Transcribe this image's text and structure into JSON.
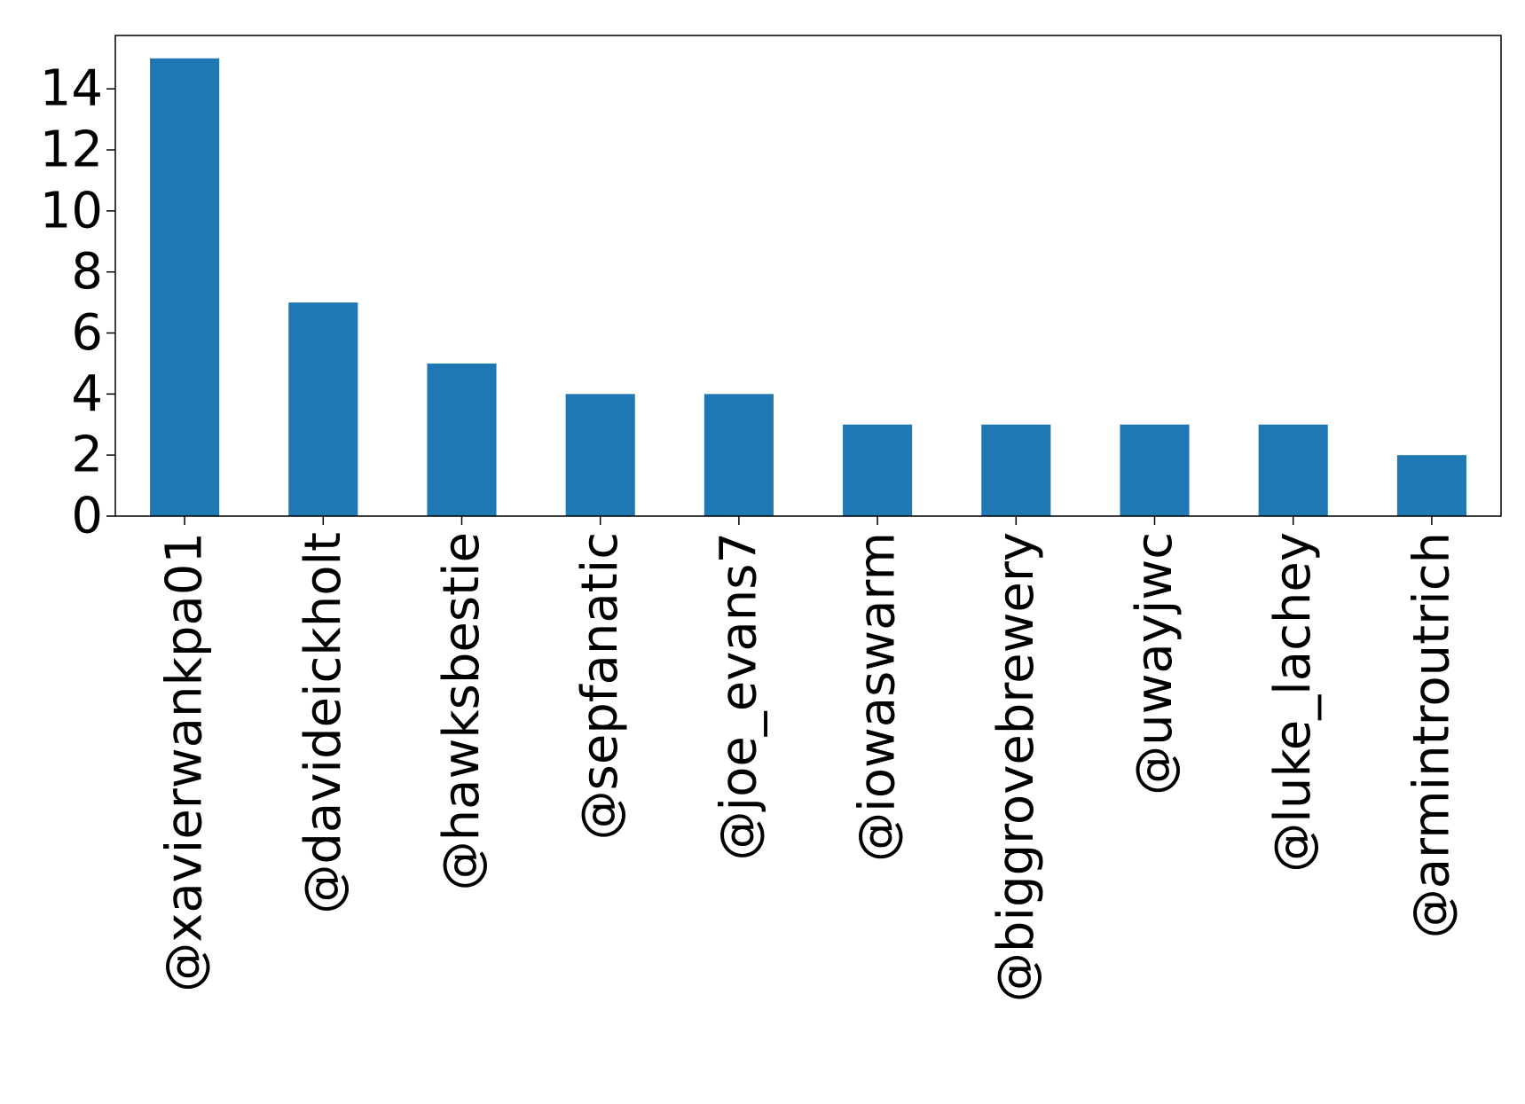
{
  "chart_data": {
    "type": "bar",
    "categories": [
      "@xavierwankpa01",
      "@davideickholt",
      "@hawksbestie",
      "@sepfanatic",
      "@joe_evans7",
      "@iowaswarm",
      "@biggrovebrewery",
      "@uwayjwc",
      "@luke_lachey",
      "@armintroutrich"
    ],
    "values": [
      15,
      7,
      5,
      4,
      4,
      3,
      3,
      3,
      3,
      2
    ],
    "ylim": [
      0,
      15.75
    ],
    "yticks": [
      0,
      2,
      4,
      6,
      8,
      10,
      12,
      14
    ],
    "title": "",
    "xlabel": "",
    "ylabel": "",
    "grid": false,
    "colors": {
      "bar": "#1f77b4",
      "axis": "#000000",
      "background": "#ffffff"
    }
  }
}
